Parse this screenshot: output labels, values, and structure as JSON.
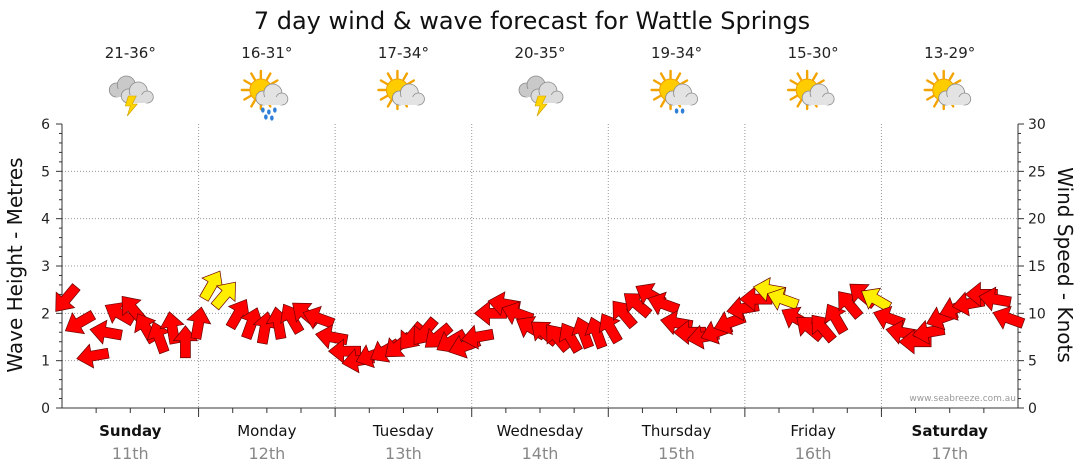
{
  "chart_data": {
    "type": "line",
    "title": "7 day wind & wave forecast for Wattle Springs",
    "ylabel_left": "Wave Height - Metres",
    "ylabel_right": "Wind Speed - Knots",
    "ylim_left": [
      0,
      6
    ],
    "ylim_right": [
      0,
      30
    ],
    "left_ticks": [
      "0",
      "1",
      "2",
      "3",
      "4",
      "5",
      "6"
    ],
    "right_ticks": [
      "0",
      "5",
      "10",
      "15",
      "20",
      "25",
      "30"
    ],
    "grid": true,
    "credit": "www.seabreeze.com.au",
    "days": [
      {
        "name": "Sunday",
        "date": "11th",
        "bold": true,
        "temp": "21-36°",
        "icon": "storm-icon"
      },
      {
        "name": "Monday",
        "date": "12th",
        "bold": false,
        "temp": "16-31°",
        "icon": "sun-cloud-rain-icon"
      },
      {
        "name": "Tuesday",
        "date": "13th",
        "bold": false,
        "temp": "17-34°",
        "icon": "sun-cloud-icon"
      },
      {
        "name": "Wednesday",
        "date": "14th",
        "bold": false,
        "temp": "20-35°",
        "icon": "storm-icon"
      },
      {
        "name": "Thursday",
        "date": "15th",
        "bold": false,
        "temp": "19-34°",
        "icon": "sun-cloud-shower-icon"
      },
      {
        "name": "Friday",
        "date": "16th",
        "bold": false,
        "temp": "15-30°",
        "icon": "sun-cloud-icon"
      },
      {
        "name": "Saturday",
        "date": "17th",
        "bold": true,
        "temp": "13-29°",
        "icon": "sun-cloud-icon"
      }
    ],
    "series": [
      {
        "name": "Wind Speed",
        "unit": "knots",
        "values": [
          11.5,
          9,
          5.5,
          8,
          10,
          10.5,
          8.5,
          7.5,
          8.5,
          7,
          9,
          13,
          12,
          10,
          9,
          8.5,
          9,
          9.5,
          10,
          9.5,
          7.5,
          6,
          5,
          5.5,
          6,
          6.5,
          7.5,
          8,
          7.5,
          7,
          6.5,
          7.5,
          10,
          11,
          10,
          8.5,
          8,
          7.5,
          7.5,
          8,
          8,
          8.5,
          10,
          11,
          12,
          11,
          9,
          8,
          7.5,
          8,
          9,
          10.5,
          11.5,
          12.5,
          11.5,
          9.5,
          8.5,
          8.5,
          9.5,
          11,
          12,
          11.5,
          9.5,
          8,
          7,
          8,
          9.5,
          10.5,
          11,
          12,
          11.5,
          9.5
        ],
        "strong": [
          false,
          false,
          false,
          false,
          false,
          false,
          false,
          false,
          false,
          false,
          false,
          true,
          true,
          false,
          false,
          false,
          false,
          false,
          false,
          false,
          false,
          false,
          false,
          false,
          false,
          false,
          false,
          false,
          false,
          false,
          false,
          false,
          false,
          false,
          false,
          false,
          false,
          false,
          false,
          false,
          false,
          false,
          false,
          false,
          false,
          false,
          false,
          false,
          false,
          false,
          false,
          false,
          false,
          true,
          true,
          false,
          false,
          false,
          false,
          false,
          false,
          true,
          false,
          false,
          false,
          false,
          false,
          false,
          false,
          false,
          false,
          false
        ],
        "direction_deg": [
          130,
          150,
          170,
          190,
          210,
          230,
          240,
          250,
          260,
          270,
          280,
          300,
          310,
          300,
          290,
          280,
          260,
          240,
          220,
          200,
          190,
          180,
          170,
          160,
          150,
          140,
          130,
          130,
          140,
          150,
          160,
          170,
          180,
          190,
          200,
          210,
          220,
          230,
          240,
          250,
          250,
          240,
          230,
          220,
          210,
          200,
          190,
          180,
          170,
          160,
          160,
          170,
          180,
          190,
          200,
          210,
          220,
          230,
          240,
          230,
          220,
          210,
          200,
          190,
          180,
          170,
          160,
          160,
          170,
          180,
          190,
          200
        ]
      }
    ]
  }
}
